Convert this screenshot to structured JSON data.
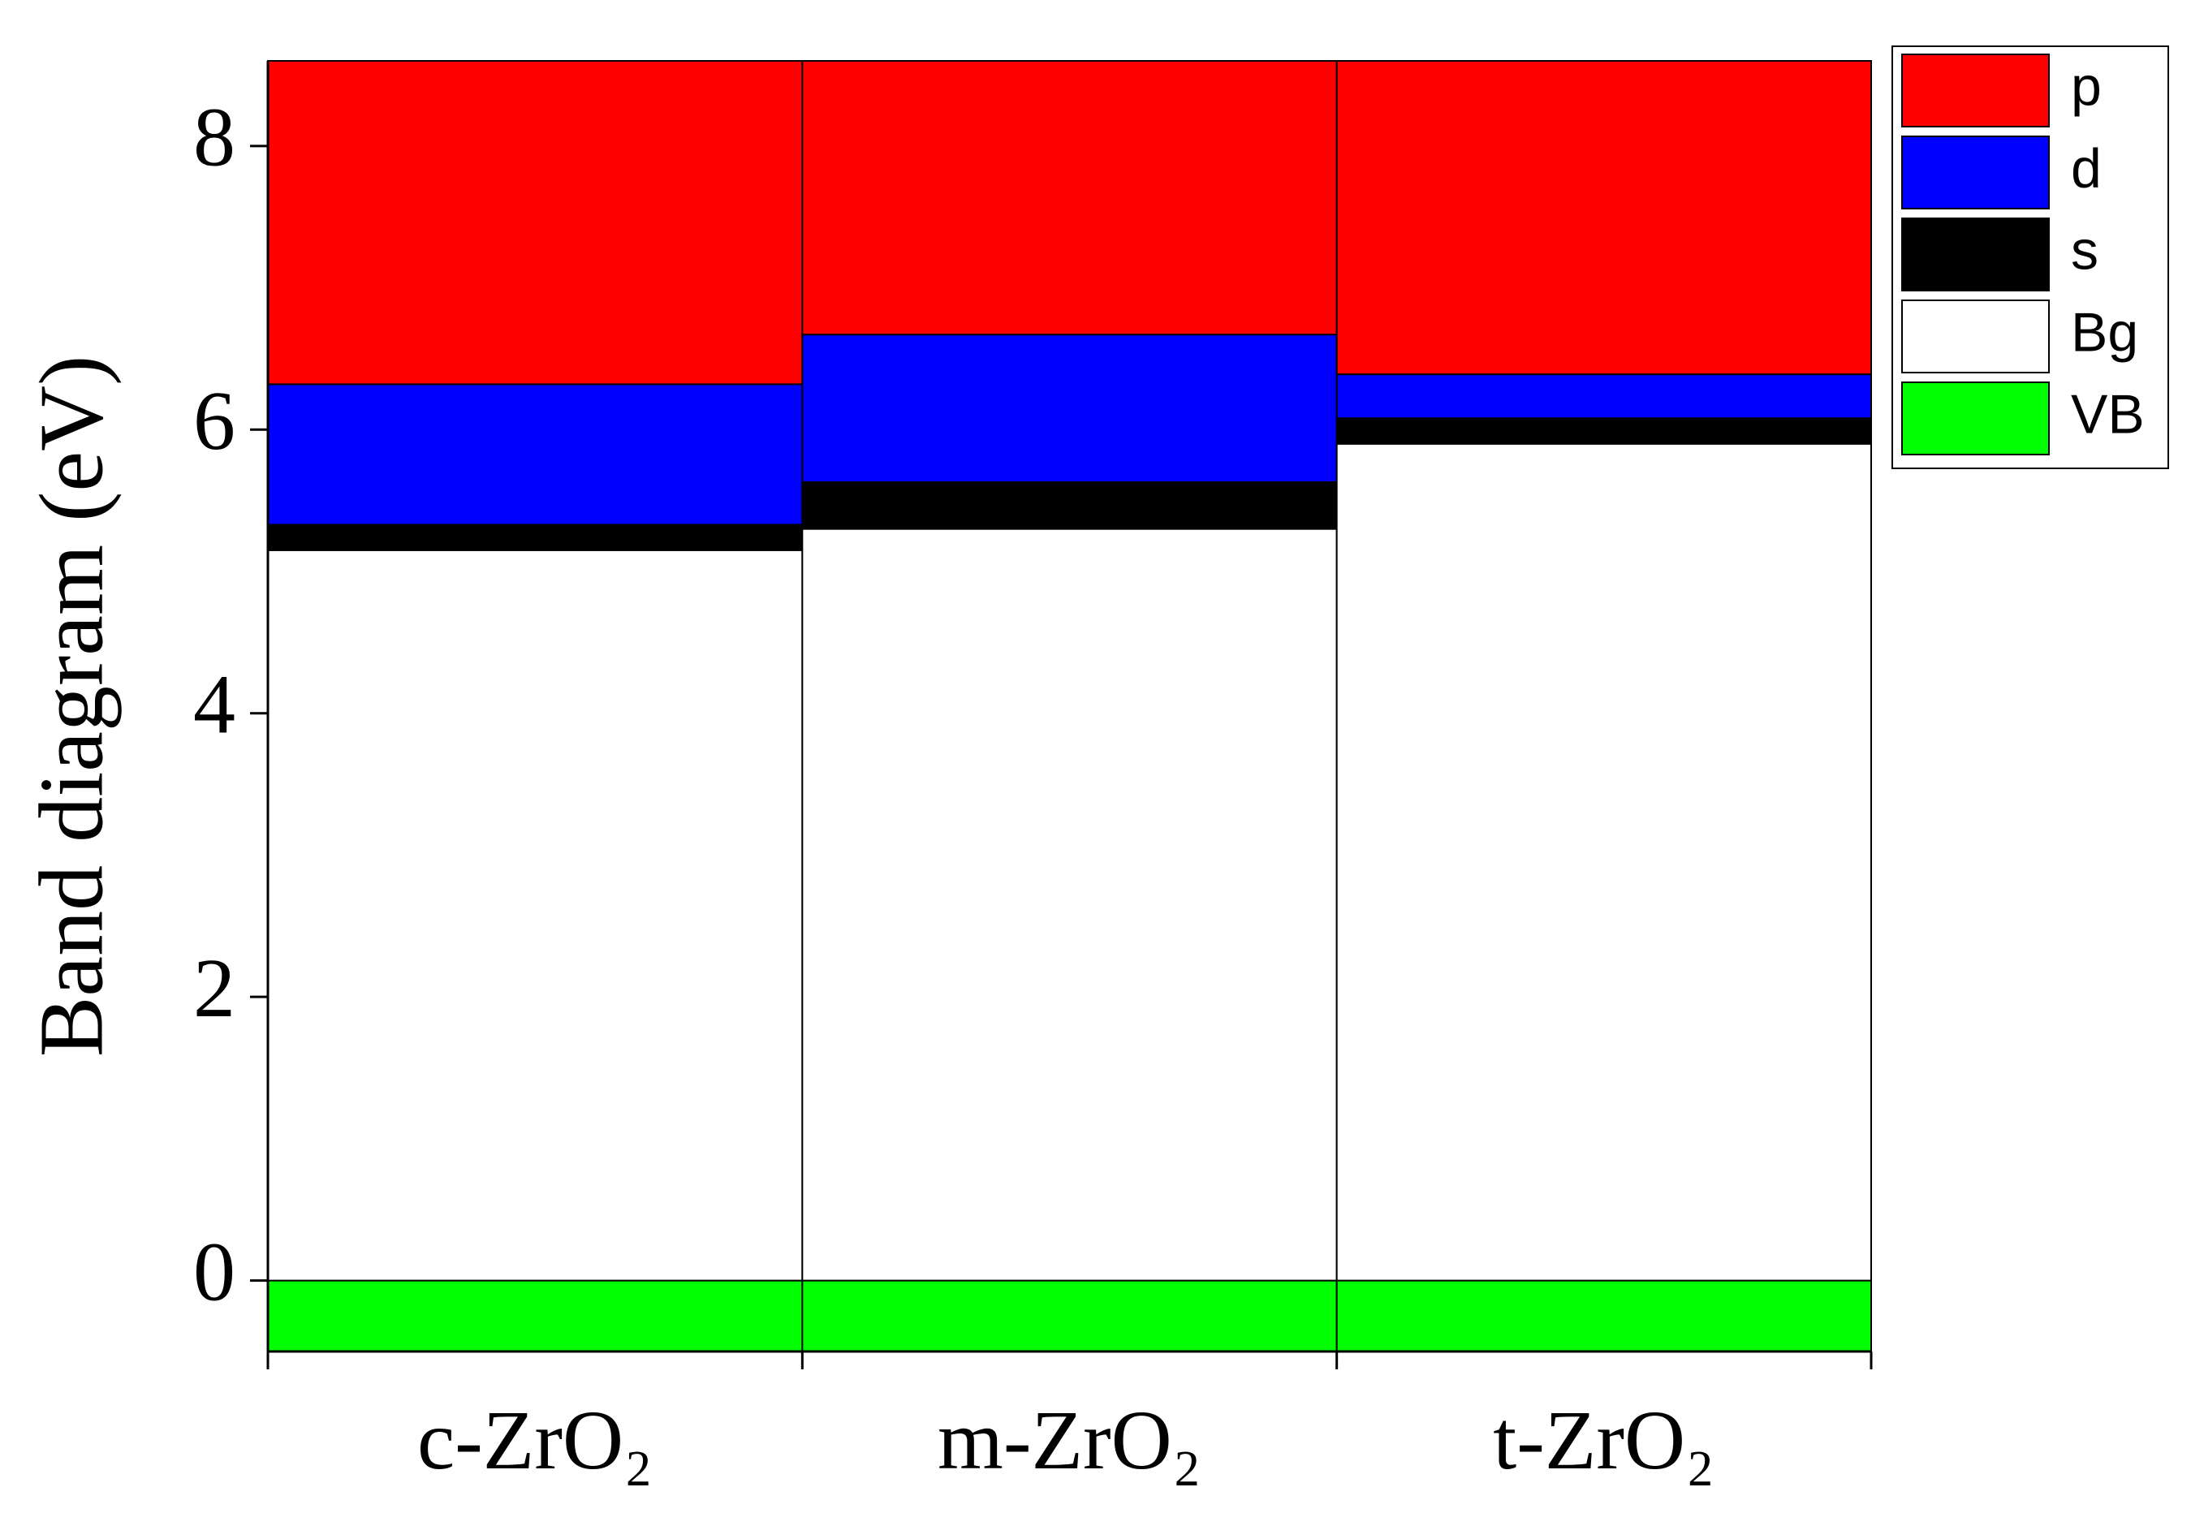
{
  "chart_data": {
    "type": "stacked-bar",
    "y_label": "Band diagram (eV)",
    "categories": [
      "c-ZrO₂",
      "m-ZrO₂",
      "t-ZrO₂"
    ],
    "series": [
      {
        "name": "VB",
        "color": "#00ff00",
        "values": [
          -0.5,
          -0.5,
          -0.5
        ]
      },
      {
        "name": "Bg",
        "color": "#ffffff",
        "values": [
          5.15,
          5.3,
          5.9
        ]
      },
      {
        "name": "s",
        "color": "#000000",
        "values": [
          0.18,
          0.33,
          0.18
        ]
      },
      {
        "name": "d",
        "color": "#0000ff",
        "values": [
          0.99,
          1.04,
          0.31
        ]
      },
      {
        "name": "p",
        "color": "#ff0000",
        "values": [
          2.28,
          1.93,
          2.21
        ]
      }
    ],
    "ylim": [
      -0.5,
      8.6
    ],
    "yticks": [
      0,
      2,
      4,
      6,
      8
    ],
    "legend": "outside-top-right"
  }
}
